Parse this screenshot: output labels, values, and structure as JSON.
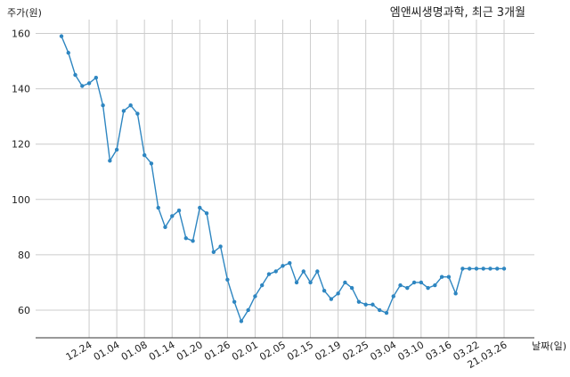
{
  "chart_data": {
    "type": "line",
    "title": "엠앤씨생명과학, 최근 3개월",
    "xlabel": "날짜(일)",
    "ylabel": "주가(원)",
    "ylim": [
      50,
      165
    ],
    "yticks": [
      60,
      80,
      100,
      120,
      140,
      160
    ],
    "grid": true,
    "legend": "none",
    "colors": {
      "line": "#2e86c1",
      "marker": "#2e86c1",
      "grid": "#cccccc"
    },
    "x": [
      "12.18",
      "12.21",
      "12.22",
      "12.23",
      "12.24",
      "12.28",
      "12.29",
      "12.30",
      "01.04",
      "01.05",
      "01.06",
      "01.07",
      "01.08",
      "01.11",
      "01.12",
      "01.13",
      "01.14",
      "01.15",
      "01.18",
      "01.19",
      "01.20",
      "01.21",
      "01.22",
      "01.25",
      "01.26",
      "01.27",
      "01.28",
      "01.29",
      "02.01",
      "02.02",
      "02.03",
      "02.04",
      "02.05",
      "02.08",
      "02.09",
      "02.10",
      "02.15",
      "02.16",
      "02.17",
      "02.18",
      "02.19",
      "02.22",
      "02.23",
      "02.24",
      "02.25",
      "02.26",
      "03.02",
      "03.03",
      "03.04",
      "03.05",
      "03.08",
      "03.09",
      "03.10",
      "03.11",
      "03.12",
      "03.15",
      "03.16",
      "03.17",
      "03.18",
      "03.19",
      "03.22",
      "03.23",
      "03.24",
      "03.25",
      "21.03.26"
    ],
    "values": [
      159,
      153,
      145,
      141,
      142,
      144,
      134,
      114,
      118,
      132,
      134,
      131,
      116,
      113,
      97,
      90,
      94,
      96,
      86,
      85,
      97,
      95,
      81,
      83,
      71,
      63,
      56,
      60,
      65,
      69,
      73,
      74,
      76,
      77,
      70,
      74,
      70,
      74,
      67,
      64,
      66,
      70,
      68,
      63,
      62,
      62,
      60,
      59,
      65,
      69,
      68,
      70,
      70,
      68,
      69,
      72,
      72,
      66,
      75,
      75,
      75,
      75,
      75,
      75,
      75
    ],
    "xtick_labels": [
      "12.24",
      "01.04",
      "01.08",
      "01.14",
      "01.20",
      "01.26",
      "02.01",
      "02.05",
      "02.15",
      "02.19",
      "02.25",
      "03.04",
      "03.10",
      "03.16",
      "03.22",
      "21.03.26"
    ]
  }
}
